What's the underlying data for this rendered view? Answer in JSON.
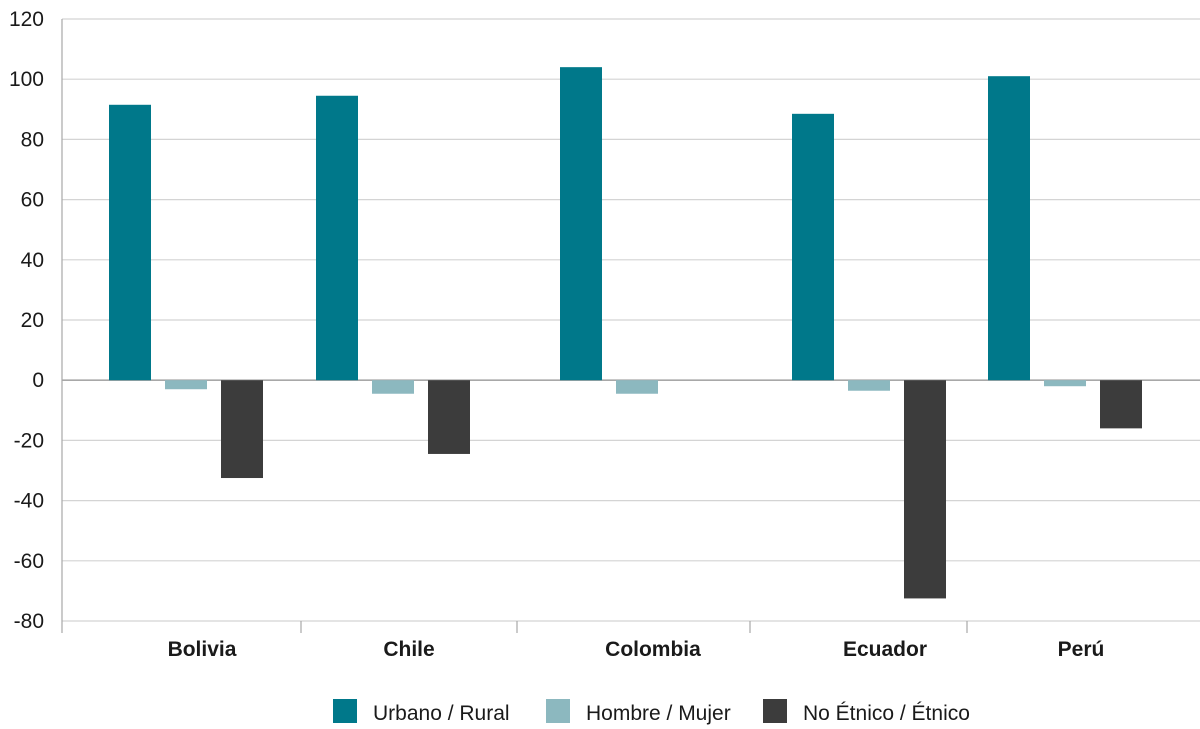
{
  "chart_data": {
    "type": "bar",
    "categories": [
      "Bolivia",
      "Chile",
      "Colombia",
      "Ecuador",
      "Perú"
    ],
    "series": [
      {
        "name": "Urbano / Rural",
        "color": "#00788A",
        "values": [
          91.5,
          94.5,
          104,
          88.5,
          101
        ]
      },
      {
        "name": "Hombre / Mujer",
        "color": "#8CB8BF",
        "values": [
          -3,
          -4.5,
          -4.5,
          -3.5,
          -2
        ]
      },
      {
        "name": "No Étnico / Étnico",
        "color": "#3C3C3C",
        "values": [
          -32.5,
          -24.5,
          null,
          -72.5,
          -16
        ]
      }
    ],
    "ylim": [
      -80,
      120
    ],
    "yticks": [
      120,
      100,
      80,
      60,
      40,
      20,
      0,
      -20,
      -40,
      -60,
      -80
    ],
    "ytick_labels": [
      "120",
      "100",
      "80",
      "60",
      "40",
      "20",
      "0",
      "-20",
      "-40",
      "-60",
      "-80"
    ],
    "grid": true,
    "legend_position": "bottom",
    "title": "",
    "xlabel": "",
    "ylabel": ""
  }
}
